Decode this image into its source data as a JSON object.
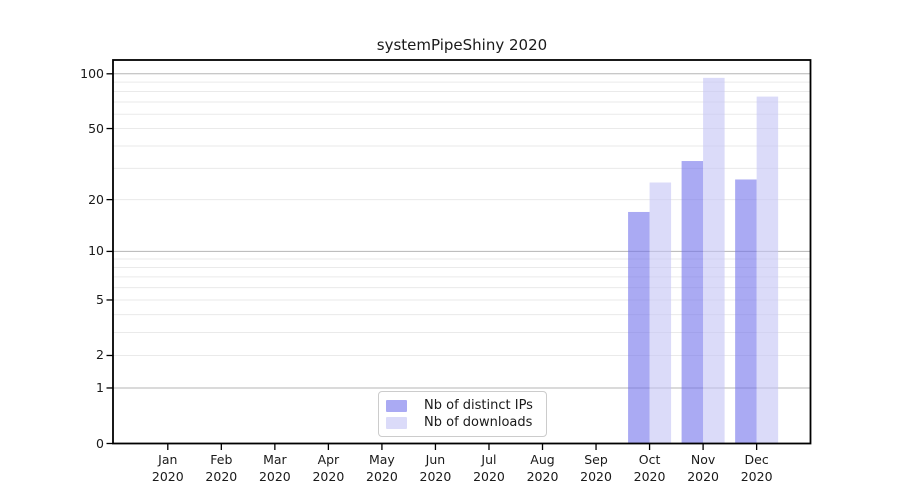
{
  "chart_data": {
    "type": "bar",
    "title": "systemPipeShiny 2020",
    "year_label": "2020",
    "categories": [
      "Jan",
      "Feb",
      "Mar",
      "Apr",
      "May",
      "Jun",
      "Jul",
      "Aug",
      "Sep",
      "Oct",
      "Nov",
      "Dec"
    ],
    "series": [
      {
        "name": "Nb of distinct IPs",
        "color": "#7171eb",
        "values": [
          0,
          0,
          0,
          0,
          0,
          0,
          0,
          0,
          0,
          17,
          33,
          26
        ]
      },
      {
        "name": "Nb of downloads",
        "color": "#c3c3f5",
        "values": [
          0,
          0,
          0,
          0,
          0,
          0,
          0,
          0,
          0,
          25,
          95,
          75
        ]
      }
    ],
    "bar_opacity": 0.6,
    "y_scale": "log1p",
    "y_ticks": [
      0,
      1,
      2,
      5,
      10,
      20,
      50,
      100
    ],
    "y_major_gridlines": [
      1,
      10,
      100
    ],
    "y_minor_gridlines": [
      2,
      3,
      4,
      5,
      6,
      7,
      8,
      9,
      20,
      30,
      40,
      50,
      60,
      70,
      80,
      90
    ],
    "ylim": [
      0,
      119
    ],
    "grid": true,
    "legend_position": "bottom-center",
    "colors": {
      "axis": "#000000",
      "major_grid": "#b5b5b5",
      "minor_grid": "#eaeaea",
      "text": "#1a1a1a",
      "legend_border": "#cccccc"
    }
  }
}
